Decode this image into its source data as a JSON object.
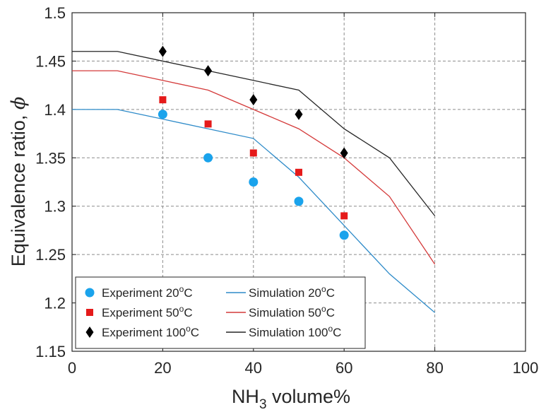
{
  "chart_data": {
    "type": "line",
    "title": "",
    "xlabel": {
      "base": "NH",
      "sub": "3",
      "rest": " volume%"
    },
    "ylabel": {
      "text": "Equivalence ratio, ",
      "symbol": "ϕ"
    },
    "xlim": [
      0,
      100
    ],
    "ylim": [
      1.15,
      1.5
    ],
    "x_ticks": [
      0,
      20,
      40,
      60,
      80,
      100
    ],
    "x_tick_labels": [
      "0",
      "20",
      "40",
      "60",
      "80",
      "100"
    ],
    "y_ticks": [
      1.15,
      1.2,
      1.25,
      1.3,
      1.35,
      1.4,
      1.45,
      1.5
    ],
    "y_tick_labels": [
      "1.15",
      "1.2",
      "1.25",
      "1.3",
      "1.35",
      "1.4",
      "1.45",
      "1.5"
    ],
    "grid": true,
    "legend_position": "bottom-left",
    "series": [
      {
        "id": "exp20",
        "name": "Experiment 20",
        "sup": "o",
        "unit": "C",
        "kind": "scatter",
        "marker": "circle",
        "color": "#1AA3EC",
        "x": [
          20,
          30,
          40,
          50,
          60
        ],
        "y": [
          1.395,
          1.35,
          1.325,
          1.305,
          1.27
        ]
      },
      {
        "id": "exp50",
        "name": "Experiment 50",
        "sup": "o",
        "unit": "C",
        "kind": "scatter",
        "marker": "square",
        "color": "#E51A1A",
        "x": [
          20,
          30,
          40,
          50,
          60
        ],
        "y": [
          1.41,
          1.385,
          1.355,
          1.335,
          1.29
        ]
      },
      {
        "id": "exp100",
        "name": "Experiment 100",
        "sup": "o",
        "unit": "C",
        "kind": "scatter",
        "marker": "diamond",
        "color": "#000000",
        "x": [
          20,
          30,
          40,
          50,
          60
        ],
        "y": [
          1.46,
          1.44,
          1.41,
          1.395,
          1.355
        ]
      },
      {
        "id": "sim20",
        "name": "Simulation 20",
        "sup": "o",
        "unit": "C",
        "kind": "line",
        "color": "#2E8BC9",
        "x": [
          0,
          10,
          20,
          30,
          40,
          50,
          60,
          70,
          80
        ],
        "y": [
          1.4,
          1.4,
          1.39,
          1.38,
          1.37,
          1.33,
          1.28,
          1.23,
          1.19
        ]
      },
      {
        "id": "sim50",
        "name": "Simulation 50",
        "sup": "o",
        "unit": "C",
        "kind": "line",
        "color": "#D43A3A",
        "x": [
          0,
          10,
          20,
          30,
          40,
          50,
          60,
          70,
          80
        ],
        "y": [
          1.44,
          1.44,
          1.43,
          1.42,
          1.4,
          1.38,
          1.35,
          1.31,
          1.24
        ]
      },
      {
        "id": "sim100",
        "name": "Simulation 100",
        "sup": "o",
        "unit": "C",
        "kind": "line",
        "color": "#262626",
        "x": [
          0,
          10,
          20,
          30,
          40,
          50,
          60,
          70,
          80
        ],
        "y": [
          1.46,
          1.46,
          1.45,
          1.44,
          1.43,
          1.42,
          1.38,
          1.35,
          1.29
        ]
      }
    ]
  }
}
